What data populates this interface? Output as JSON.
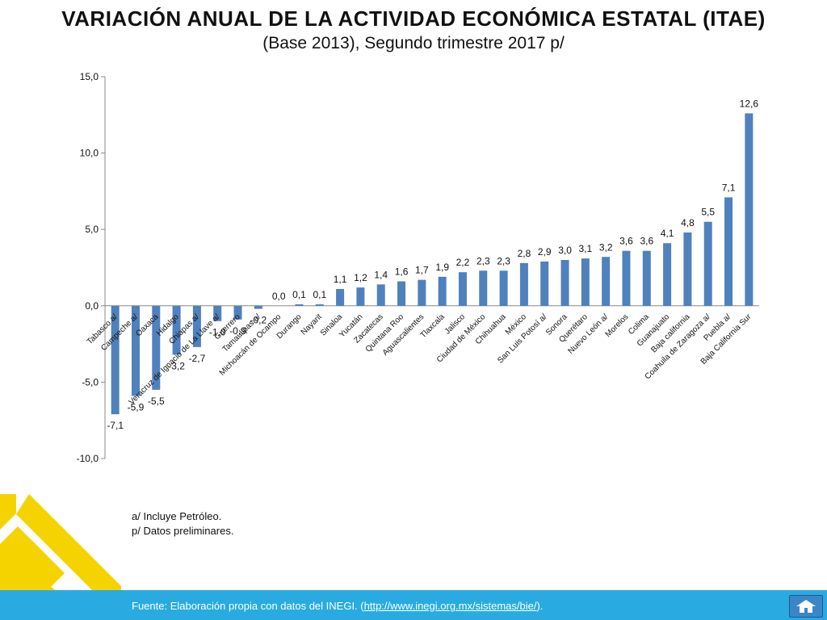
{
  "header": {
    "title": "VARIACIÓN ANUAL DE LA ACTIVIDAD ECONÓMICA ESTATAL (ITAE)",
    "subtitle": "(Base 2013),  Segundo trimestre  2017 p/"
  },
  "notes": [
    "a/ Incluye Petróleo.",
    "p/ Datos preliminares."
  ],
  "footer": {
    "source_prefix": "Fuente: Elaboración propia con datos del INEGI. (",
    "link_text": "http://www.inegi.org.mx/sistemas/bie/",
    "source_suffix": ")."
  },
  "colors": {
    "bar": "#4f81bd",
    "footer": "#29abe2",
    "logo": "#f5d300"
  },
  "icons": {
    "home": "home-icon",
    "logo": "logo-icon"
  },
  "chart_data": {
    "type": "bar",
    "categories": [
      "Tabasco a/",
      "Campeche a/",
      "Oaxaca",
      "Hidalgo",
      "Chiapas a/",
      "Veracruz de Ignacio de La Llave a/",
      "Guerrero",
      "Tamaulipas a/",
      "Michoacán de Ocampo",
      "Durango",
      "Nayarit",
      "Sinaloa",
      "Yucatán",
      "Zacatecas",
      "Quintana Roo",
      "Aguascalientes",
      "Tlaxcala",
      "Jalisco",
      "Ciudad de México",
      "Chihuahua",
      "México",
      "San Luis Potosí a/",
      "Sonora",
      "Querétaro",
      "Nuevo León a/",
      "Morelos",
      "Colima",
      "Guanajuato",
      "Baja california",
      "Coahuila de Zaragoza a/",
      "Puebla a/",
      "Baja California Sur"
    ],
    "values": [
      -7.1,
      -5.9,
      -5.5,
      -3.2,
      -2.7,
      -1.0,
      -0.9,
      -0.2,
      0.0,
      0.1,
      0.1,
      1.1,
      1.2,
      1.4,
      1.6,
      1.7,
      1.9,
      2.2,
      2.3,
      2.3,
      2.8,
      2.9,
      3.0,
      3.1,
      3.2,
      3.6,
      3.6,
      4.1,
      4.8,
      5.5,
      7.1,
      12.6
    ],
    "value_labels": [
      "-7,1",
      "-5,9",
      "-5,5",
      "-3,2",
      "-2,7",
      "-1,0",
      "-0,9",
      "-0,2",
      "0,0",
      "0,1",
      "0,1",
      "1,1",
      "1,2",
      "1,4",
      "1,6",
      "1,7",
      "1,9",
      "2,2",
      "2,3",
      "2,3",
      "2,8",
      "2,9",
      "3,0",
      "3,1",
      "3,2",
      "3,6",
      "3,6",
      "4,1",
      "4,8",
      "5,5",
      "7,1",
      "12,6"
    ],
    "y_ticks": [
      15,
      10,
      5,
      0,
      -5,
      -10
    ],
    "y_tick_labels": [
      "15,0",
      "10,0",
      "5,0",
      "0,0",
      "-5,0",
      "-10,0"
    ],
    "ylim": [
      -10,
      15
    ],
    "title": "VARIACIÓN ANUAL DE LA ACTIVIDAD ECONÓMICA ESTATAL (ITAE)",
    "xlabel": "",
    "ylabel": "",
    "grid": false,
    "legend": "none"
  }
}
